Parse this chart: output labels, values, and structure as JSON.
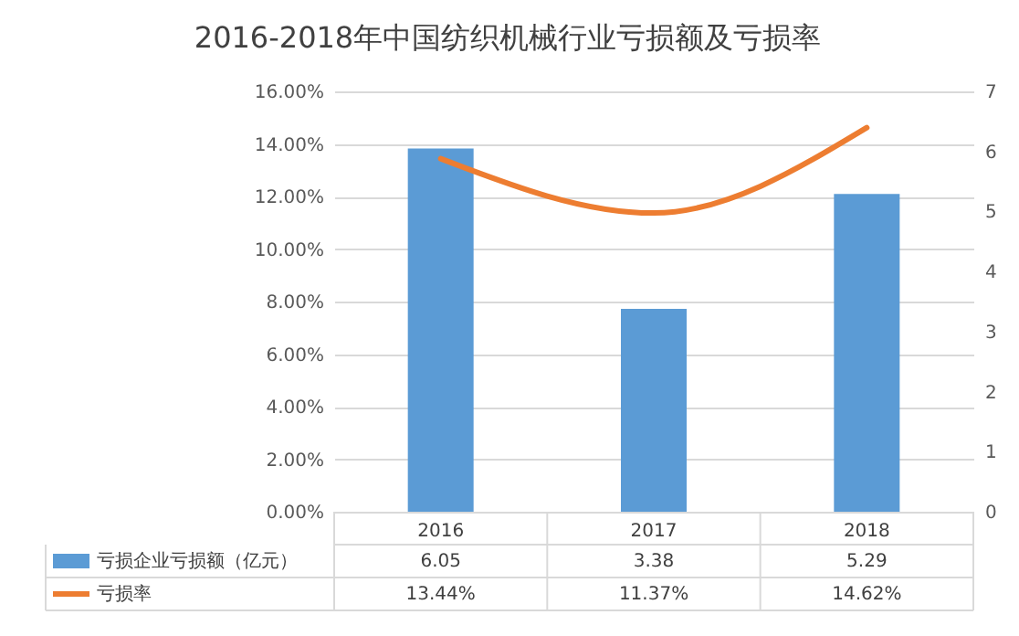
{
  "chart_data": {
    "type": "bar",
    "title": "2016-2018年中国纺织机械行业亏损额及亏损率",
    "categories": [
      "2016",
      "2017",
      "2018"
    ],
    "series": [
      {
        "name": "亏损企业亏损额（亿元）",
        "axis": "y2",
        "color": "#5b9bd5",
        "values": [
          6.05,
          3.38,
          5.29
        ],
        "value_labels": [
          "6.05",
          "3.38",
          "5.29"
        ]
      },
      {
        "name": "亏损率",
        "type": "line",
        "color": "#ed7d31",
        "values": [
          13.44,
          11.37,
          14.62
        ],
        "value_labels": [
          "13.44%",
          "11.37%",
          "14.62%"
        ]
      }
    ],
    "ylim": [
      0,
      16
    ],
    "yticks": [
      {
        "value": 0,
        "label": "0.00%"
      },
      {
        "value": 2,
        "label": "2.00%"
      },
      {
        "value": 4,
        "label": "4.00%"
      },
      {
        "value": 6,
        "label": "6.00%"
      },
      {
        "value": 8,
        "label": "8.00%"
      },
      {
        "value": 10,
        "label": "10.00%"
      },
      {
        "value": 12,
        "label": "12.00%"
      },
      {
        "value": 14,
        "label": "14.00%"
      },
      {
        "value": 16,
        "label": "16.00%"
      }
    ],
    "y2lim": [
      0,
      7
    ],
    "y2ticks": [
      0,
      1,
      2,
      3,
      4,
      5,
      6,
      7
    ],
    "grid": "y",
    "legend": "bottom left"
  }
}
